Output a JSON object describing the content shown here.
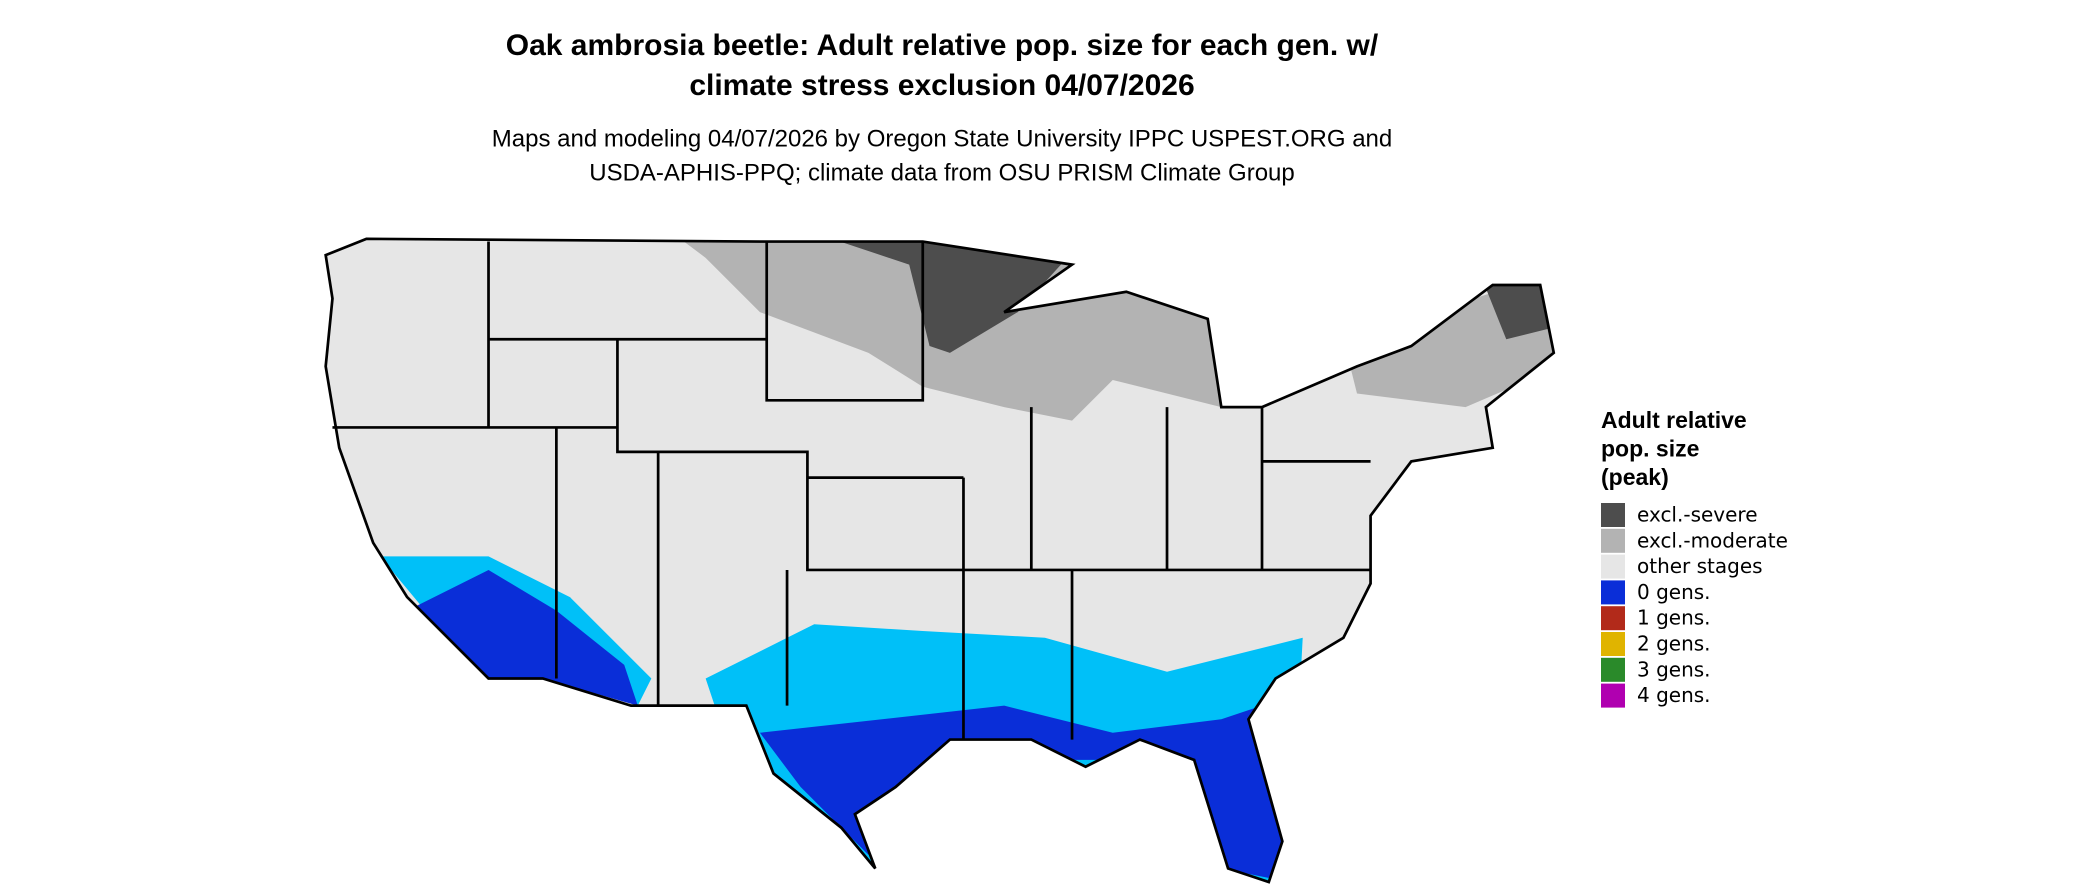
{
  "header": {
    "title": [
      "Oak ambrosia beetle: Adult relative pop. size for each gen. w/",
      "climate stress exclusion 04/07/2026"
    ],
    "subtitle": [
      "Maps and modeling 04/07/2026 by Oregon State University IPPC USPEST.ORG and",
      "USDA-APHIS-PPQ; climate data from OSU PRISM Climate Group"
    ]
  },
  "legend": {
    "title": [
      "Adult relative",
      "pop. size",
      "(peak)"
    ],
    "items": [
      {
        "label": "excl.-severe",
        "color": "#4d4d4d"
      },
      {
        "label": "excl.-moderate",
        "color": "#b3b3b3"
      },
      {
        "label": "other stages",
        "color": "#e6e6e6"
      },
      {
        "label": "0 gens.",
        "color": "#0a2ed8"
      },
      {
        "label": "1 gens.",
        "color": "#b22a1a"
      },
      {
        "label": "2 gens.",
        "color": "#e0b400"
      },
      {
        "label": "3 gens.",
        "color": "#2a8a2a"
      },
      {
        "label": "4 gens.",
        "color": "#b000b0"
      }
    ]
  }
}
